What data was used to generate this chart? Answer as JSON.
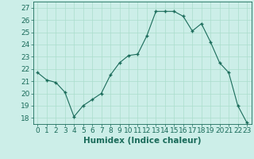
{
  "x": [
    0,
    1,
    2,
    3,
    4,
    5,
    6,
    7,
    8,
    9,
    10,
    11,
    12,
    13,
    14,
    15,
    16,
    17,
    18,
    19,
    20,
    21,
    22,
    23
  ],
  "y": [
    21.7,
    21.1,
    20.9,
    20.1,
    18.1,
    19.0,
    19.5,
    20.0,
    21.5,
    22.5,
    23.1,
    23.2,
    24.7,
    26.7,
    26.7,
    26.7,
    26.3,
    25.1,
    25.7,
    24.2,
    22.5,
    21.7,
    19.0,
    17.6
  ],
  "xlabel": "Humidex (Indice chaleur)",
  "ylim": [
    17.5,
    27.5
  ],
  "yticks": [
    18,
    19,
    20,
    21,
    22,
    23,
    24,
    25,
    26,
    27
  ],
  "xticks": [
    0,
    1,
    2,
    3,
    4,
    5,
    6,
    7,
    8,
    9,
    10,
    11,
    12,
    13,
    14,
    15,
    16,
    17,
    18,
    19,
    20,
    21,
    22,
    23
  ],
  "line_color": "#1a6b5a",
  "bg_color": "#cceee8",
  "grid_color": "#aaddcc",
  "xlabel_fontsize": 7.5,
  "tick_fontsize": 6.5
}
